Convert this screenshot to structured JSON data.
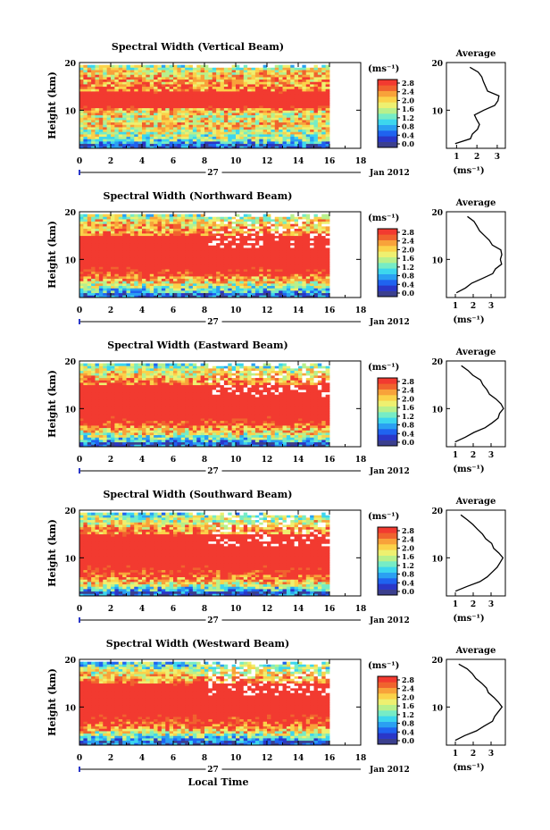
{
  "figure": {
    "xlabel_bottom": "Local Time",
    "date_label": "Jan 2012",
    "day_label": "27",
    "ylabel": "Height (km)",
    "avg_title": "Average",
    "avg_xlabel": "(ms⁻¹)",
    "colorbar_unit": "(ms⁻¹)",
    "colorbar_ticks": [
      "0.0",
      "0.4",
      "0.8",
      "1.2",
      "1.6",
      "2.0",
      "2.4",
      "2.8"
    ]
  },
  "colors": {
    "scale": [
      "#3b3f8e",
      "#2a37c8",
      "#1f63f0",
      "#2aa0f2",
      "#3cd6ee",
      "#76ecc6",
      "#b8f08c",
      "#eef070",
      "#fbd24a",
      "#f8a23a",
      "#f0632e",
      "#f23a30"
    ]
  },
  "chart_data": [
    {
      "type": "heatmap",
      "title": "Spectral Width (Vertical Beam)",
      "xlabel": "",
      "ylabel": "Height (km)",
      "xlim": [
        0,
        18
      ],
      "ylim": [
        2,
        20
      ],
      "x_ticks": [
        0,
        2,
        4,
        6,
        8,
        10,
        12,
        14,
        16,
        18
      ],
      "y_ticks": [
        10,
        20
      ],
      "colorbar": {
        "label": "(ms⁻¹)",
        "range": [
          0,
          3.0
        ]
      },
      "average_profile": {
        "xlim": [
          0.5,
          3.4
        ],
        "x_ticks": [
          1,
          2,
          3
        ],
        "height": [
          3,
          4,
          5,
          6,
          7,
          8,
          9,
          10,
          11,
          12,
          13,
          14,
          15,
          16,
          17,
          18,
          19
        ],
        "value": [
          1.0,
          1.6,
          1.7,
          2.0,
          2.1,
          2.0,
          1.9,
          2.4,
          2.9,
          3.1,
          3.0,
          2.6,
          2.5,
          2.3,
          2.2,
          2.0,
          1.6
        ]
      }
    },
    {
      "type": "heatmap",
      "title": "Spectral Width (Northward Beam)",
      "xlabel": "",
      "ylabel": "Height (km)",
      "xlim": [
        0,
        18
      ],
      "ylim": [
        2,
        20
      ],
      "x_ticks": [
        0,
        2,
        4,
        6,
        8,
        10,
        12,
        14,
        16,
        18
      ],
      "y_ticks": [
        10,
        20
      ],
      "colorbar": {
        "label": "(ms⁻¹)",
        "range": [
          0,
          3.0
        ]
      },
      "average_profile": {
        "xlim": [
          0.5,
          3.8
        ],
        "x_ticks": [
          1,
          2,
          3
        ],
        "height": [
          3,
          4,
          5,
          6,
          7,
          8,
          9,
          10,
          11,
          12,
          13,
          14,
          15,
          16,
          17,
          18,
          19
        ],
        "value": [
          1.0,
          1.5,
          2.0,
          2.5,
          3.0,
          3.3,
          3.5,
          3.6,
          3.6,
          3.5,
          3.1,
          2.9,
          2.6,
          2.4,
          2.2,
          2.0,
          1.6
        ]
      }
    },
    {
      "type": "heatmap",
      "title": "Spectral Width (Eastward Beam)",
      "xlabel": "",
      "ylabel": "Height (km)",
      "xlim": [
        0,
        18
      ],
      "ylim": [
        2,
        20
      ],
      "x_ticks": [
        0,
        2,
        4,
        6,
        8,
        10,
        12,
        14,
        16,
        18
      ],
      "y_ticks": [
        10,
        20
      ],
      "colorbar": {
        "label": "(ms⁻¹)",
        "range": [
          0,
          3.0
        ]
      },
      "average_profile": {
        "xlim": [
          0.5,
          3.8
        ],
        "x_ticks": [
          1,
          2,
          3
        ],
        "height": [
          3,
          4,
          5,
          6,
          7,
          8,
          9,
          10,
          11,
          12,
          13,
          14,
          15,
          16,
          17,
          18,
          19
        ],
        "value": [
          1.0,
          1.6,
          2.1,
          2.6,
          3.0,
          3.3,
          3.5,
          3.6,
          3.5,
          3.3,
          3.0,
          2.8,
          2.6,
          2.4,
          2.0,
          1.8,
          1.3
        ]
      }
    },
    {
      "type": "heatmap",
      "title": "Spectral Width (Southward Beam)",
      "xlabel": "",
      "ylabel": "Height (km)",
      "xlim": [
        0,
        18
      ],
      "ylim": [
        2,
        20
      ],
      "x_ticks": [
        0,
        2,
        4,
        6,
        8,
        10,
        12,
        14,
        16,
        18
      ],
      "y_ticks": [
        10,
        20
      ],
      "colorbar": {
        "label": "(ms⁻¹)",
        "range": [
          0,
          3.0
        ]
      },
      "average_profile": {
        "xlim": [
          0.5,
          3.8
        ],
        "x_ticks": [
          1,
          2,
          3
        ],
        "height": [
          3,
          4,
          5,
          6,
          7,
          8,
          9,
          10,
          11,
          12,
          13,
          14,
          15,
          16,
          17,
          18,
          19
        ],
        "value": [
          1.0,
          1.7,
          2.3,
          2.8,
          3.1,
          3.4,
          3.6,
          3.6,
          3.5,
          3.2,
          3.0,
          2.7,
          2.5,
          2.3,
          2.0,
          1.7,
          1.3
        ]
      }
    },
    {
      "type": "heatmap",
      "title": "Spectral Width (Westward Beam)",
      "xlabel": "Local Time",
      "ylabel": "Height (km)",
      "xlim": [
        0,
        18
      ],
      "ylim": [
        2,
        20
      ],
      "x_ticks": [
        0,
        2,
        4,
        6,
        8,
        10,
        12,
        14,
        16,
        18
      ],
      "y_ticks": [
        10,
        20
      ],
      "colorbar": {
        "label": "(ms⁻¹)",
        "range": [
          0,
          3.0
        ]
      },
      "average_profile": {
        "xlim": [
          0.5,
          3.8
        ],
        "x_ticks": [
          1,
          2,
          3
        ],
        "height": [
          3,
          4,
          5,
          6,
          7,
          8,
          9,
          10,
          11,
          12,
          13,
          14,
          15,
          16,
          17,
          18,
          19
        ],
        "value": [
          1.0,
          1.6,
          2.2,
          2.7,
          3.0,
          3.3,
          3.5,
          3.6,
          3.4,
          3.1,
          2.9,
          2.7,
          2.5,
          2.2,
          1.9,
          1.6,
          1.2
        ]
      }
    }
  ]
}
